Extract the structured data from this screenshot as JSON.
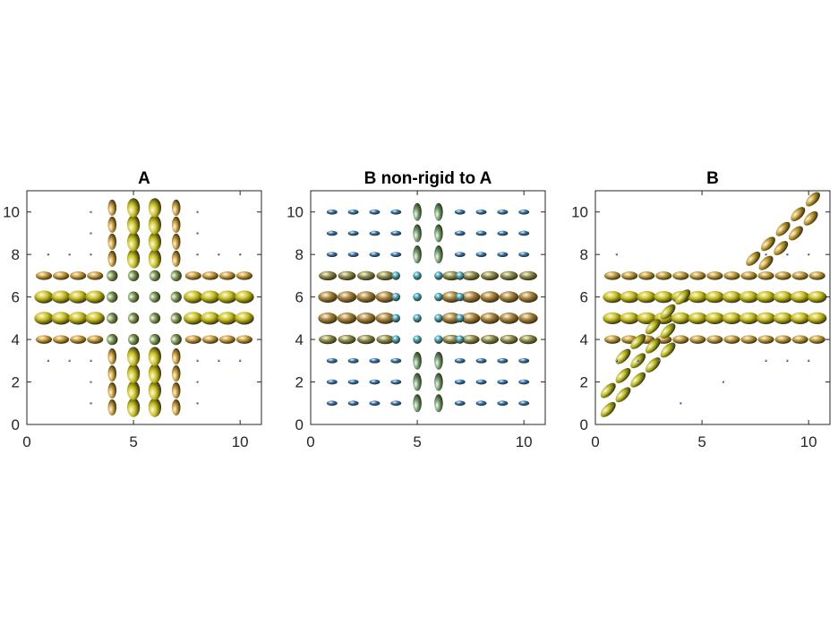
{
  "chart_data": [
    {
      "type": "glyph",
      "title": "A",
      "xlim": [
        0,
        11
      ],
      "ylim": [
        0,
        11
      ],
      "xticks": [
        0,
        5,
        10
      ],
      "yticks": [
        0,
        2,
        4,
        6,
        8,
        10
      ],
      "series": [
        {
          "color": "#c89a3a",
          "angle": 0,
          "rx": 0.38,
          "ry": 0.2,
          "x": [
            0.8,
            1.6,
            2.4,
            3.2,
            7.8,
            8.6,
            9.4,
            10.2,
            0.8,
            1.6,
            2.4,
            3.2,
            7.8,
            8.6,
            9.4,
            10.2
          ],
          "y": [
            4,
            4,
            4,
            4,
            4,
            4,
            4,
            4,
            7,
            7,
            7,
            7,
            7,
            7,
            7,
            7
          ]
        },
        {
          "color": "#c8c020",
          "angle": 0,
          "rx": 0.45,
          "ry": 0.3,
          "x": [
            0.8,
            1.6,
            2.4,
            3.2,
            7.8,
            8.6,
            9.4,
            10.2,
            0.8,
            1.6,
            2.4,
            3.2,
            7.8,
            8.6,
            9.4,
            10.2
          ],
          "y": [
            5,
            5,
            5,
            5,
            5,
            5,
            5,
            5,
            6,
            6,
            6,
            6,
            6,
            6,
            6,
            6
          ]
        },
        {
          "color": "#c89a3a",
          "angle": 90,
          "rx": 0.38,
          "ry": 0.2,
          "x": [
            4,
            4,
            4,
            4,
            4,
            4,
            4,
            4,
            7,
            7,
            7,
            7,
            7,
            7,
            7,
            7
          ],
          "y": [
            0.8,
            1.6,
            2.4,
            3.2,
            7.8,
            8.6,
            9.4,
            10.2,
            0.8,
            1.6,
            2.4,
            3.2,
            7.8,
            8.6,
            9.4,
            10.2
          ]
        },
        {
          "color": "#c8c020",
          "angle": 90,
          "rx": 0.45,
          "ry": 0.3,
          "x": [
            5,
            5,
            5,
            5,
            5,
            5,
            5,
            5,
            6,
            6,
            6,
            6,
            6,
            6,
            6,
            6
          ],
          "y": [
            0.8,
            1.6,
            2.4,
            3.2,
            7.8,
            8.6,
            9.4,
            10.2,
            0.8,
            1.6,
            2.4,
            3.2,
            7.8,
            8.6,
            9.4,
            10.2
          ]
        },
        {
          "color": "#7a9a5a",
          "angle": 45,
          "rx": 0.26,
          "ry": 0.26,
          "x": [
            4,
            5,
            6,
            7,
            4,
            5,
            6,
            7,
            4,
            5,
            6,
            7,
            4,
            5,
            6,
            7
          ],
          "y": [
            4,
            4,
            4,
            4,
            5,
            5,
            5,
            5,
            6,
            6,
            6,
            6,
            7,
            7,
            7,
            7
          ]
        },
        {
          "color": "#2060c0",
          "angle": 0,
          "rx": 0.05,
          "ry": 0.05,
          "x": [
            3,
            3,
            3,
            3,
            3,
            3,
            8,
            8,
            8,
            8,
            8,
            8,
            1,
            2,
            9,
            10,
            1,
            2,
            9,
            10
          ],
          "y": [
            1,
            2,
            3,
            8,
            9,
            10,
            1,
            2,
            3,
            8,
            9,
            10,
            3,
            3,
            3,
            3,
            8,
            8,
            8,
            8
          ]
        }
      ]
    },
    {
      "type": "glyph",
      "title": "B non-rigid to A",
      "xlim": [
        0,
        11
      ],
      "ylim": [
        0,
        11
      ],
      "xticks": [
        0,
        5,
        10
      ],
      "yticks": [
        0,
        2,
        4,
        6,
        8,
        10
      ],
      "series": [
        {
          "color": "#8c8a4a",
          "angle": 0,
          "rx": 0.42,
          "ry": 0.22,
          "x": [
            0.8,
            1.7,
            2.6,
            3.5,
            6.6,
            7.5,
            8.4,
            9.3,
            10.2,
            0.8,
            1.7,
            2.6,
            3.5,
            6.6,
            7.5,
            8.4,
            9.3,
            10.2
          ],
          "y": [
            4,
            4,
            4,
            4,
            4,
            4,
            4,
            4,
            4,
            7,
            7,
            7,
            7,
            7,
            7,
            7,
            7,
            7
          ]
        },
        {
          "color": "#a8803a",
          "angle": 0,
          "rx": 0.45,
          "ry": 0.27,
          "x": [
            0.8,
            1.7,
            2.6,
            3.5,
            6.6,
            7.5,
            8.4,
            9.3,
            10.2,
            0.8,
            1.7,
            2.6,
            3.5,
            6.6,
            7.5,
            8.4,
            9.3,
            10.2
          ],
          "y": [
            5,
            5,
            5,
            5,
            5,
            5,
            5,
            5,
            5,
            6,
            6,
            6,
            6,
            6,
            6,
            6,
            6,
            6
          ]
        },
        {
          "color": "#2a70b8",
          "angle": 0,
          "rx": 0.25,
          "ry": 0.12,
          "x": [
            1,
            2,
            3,
            4,
            7,
            8,
            9,
            10,
            1,
            2,
            3,
            4,
            7,
            8,
            9,
            10,
            1,
            2,
            3,
            4,
            7,
            8,
            9,
            10,
            1,
            2,
            3,
            4,
            7,
            8,
            9,
            10,
            1,
            2,
            3,
            4,
            7,
            8,
            9,
            10,
            1,
            2,
            3,
            4,
            7,
            8,
            9,
            10
          ],
          "y": [
            1,
            1,
            1,
            1,
            1,
            1,
            1,
            1,
            2,
            2,
            2,
            2,
            2,
            2,
            2,
            2,
            3,
            3,
            3,
            3,
            3,
            3,
            3,
            3,
            8,
            8,
            8,
            8,
            8,
            8,
            8,
            8,
            9,
            9,
            9,
            9,
            9,
            9,
            9,
            9,
            10,
            10,
            10,
            10,
            10,
            10,
            10,
            10
          ]
        },
        {
          "color": "#6a9a70",
          "angle": 90,
          "rx": 0.42,
          "ry": 0.2,
          "x": [
            5,
            5,
            5,
            5,
            5,
            5,
            6,
            6,
            6,
            6,
            6,
            6
          ],
          "y": [
            1,
            2,
            3,
            8,
            9,
            10,
            1,
            2,
            3,
            8,
            9,
            10
          ]
        },
        {
          "color": "#3aa0c0",
          "angle": 0,
          "rx": 0.2,
          "ry": 0.2,
          "x": [
            4,
            5,
            6,
            7,
            4,
            5,
            6,
            7,
            4,
            5,
            6,
            7,
            4,
            5,
            6,
            7
          ],
          "y": [
            4,
            4,
            4,
            4,
            5,
            5,
            5,
            5,
            6,
            6,
            6,
            6,
            7,
            7,
            7,
            7
          ]
        }
      ]
    },
    {
      "type": "glyph",
      "title": "B",
      "xlim": [
        0,
        11
      ],
      "ylim": [
        0,
        11
      ],
      "xticks": [
        0,
        5,
        10
      ],
      "yticks": [
        0,
        2,
        4,
        6,
        8,
        10
      ],
      "series": [
        {
          "color": "#c09a3a",
          "angle": 0,
          "rx": 0.38,
          "ry": 0.2,
          "x": [
            0.8,
            1.6,
            2.4,
            3.2,
            4,
            4.8,
            5.6,
            6.4,
            7.2,
            8,
            8.8,
            9.6,
            10.4,
            0.8,
            1.6,
            2.4,
            3.2,
            4,
            4.8,
            5.6,
            6.4,
            7.2,
            8,
            8.8,
            9.6,
            10.4
          ],
          "y": [
            4,
            4,
            4,
            4,
            4,
            4,
            4,
            4,
            4,
            4,
            4,
            4,
            4,
            7,
            7,
            7,
            7,
            7,
            7,
            7,
            7,
            7,
            7,
            7,
            7,
            7
          ]
        },
        {
          "color": "#c8c020",
          "angle": 0,
          "rx": 0.45,
          "ry": 0.28,
          "x": [
            0.8,
            1.6,
            2.4,
            3.2,
            4,
            4.8,
            5.6,
            6.4,
            7.2,
            8,
            8.8,
            9.6,
            10.4,
            0.8,
            1.6,
            2.4,
            3.2,
            4,
            4.8,
            5.6,
            6.4,
            7.2,
            8,
            8.8,
            9.6,
            10.4
          ],
          "y": [
            5,
            5,
            5,
            5,
            5,
            5,
            5,
            5,
            5,
            5,
            5,
            5,
            5,
            6,
            6,
            6,
            6,
            6,
            6,
            6,
            6,
            6,
            6,
            6,
            6,
            6
          ]
        },
        {
          "color": "#b8b820",
          "angle": 45,
          "rx": 0.45,
          "ry": 0.22,
          "x": [
            0.6,
            1.3,
            2,
            2.7,
            3.4,
            0.6,
            1.3,
            2,
            2.7,
            3.4,
            1.3,
            2,
            2.7,
            3.4,
            4.1
          ],
          "y": [
            0.7,
            1.4,
            2.1,
            2.8,
            3.5,
            1.6,
            2.3,
            3,
            3.7,
            4.4,
            3.2,
            3.9,
            4.6,
            5.3,
            6
          ]
        },
        {
          "color": "#c09a30",
          "angle": 45,
          "rx": 0.42,
          "ry": 0.22,
          "x": [
            8,
            8.7,
            9.4,
            10.1,
            7.4,
            8.1,
            8.8,
            9.5,
            10.2
          ],
          "y": [
            7.6,
            8.3,
            9,
            9.7,
            7.8,
            8.5,
            9.2,
            9.9,
            10.6
          ]
        },
        {
          "color": "#2060c0",
          "angle": 0,
          "rx": 0.05,
          "ry": 0.05,
          "x": [
            1,
            2,
            3,
            8,
            9,
            10,
            1,
            8,
            9,
            10,
            6,
            4
          ],
          "y": [
            3,
            3,
            3,
            3,
            3,
            3,
            8,
            8,
            8,
            8,
            2,
            1
          ]
        }
      ]
    }
  ]
}
